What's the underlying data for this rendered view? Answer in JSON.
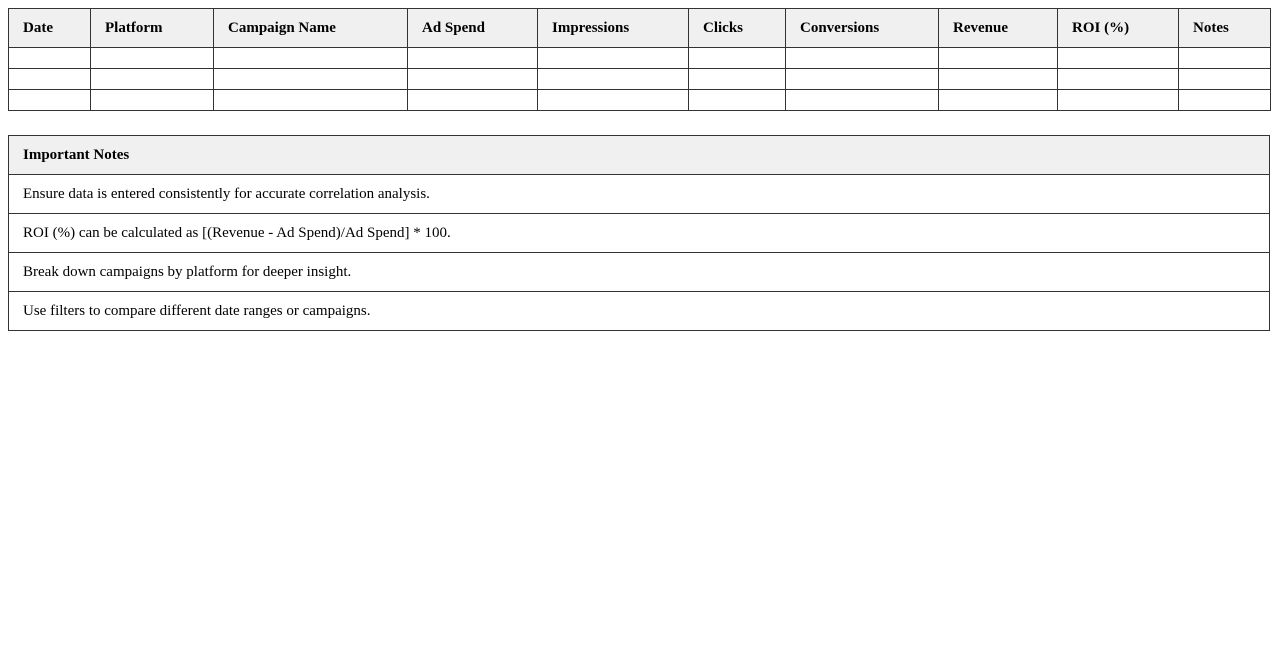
{
  "data_table": {
    "headers": [
      "Date",
      "Platform",
      "Campaign Name",
      "Ad Spend",
      "Impressions",
      "Clicks",
      "Conversions",
      "Revenue",
      "ROI (%)",
      "Notes"
    ],
    "rows": [
      [
        "",
        "",
        "",
        "",
        "",
        "",
        "",
        "",
        "",
        ""
      ],
      [
        "",
        "",
        "",
        "",
        "",
        "",
        "",
        "",
        "",
        ""
      ],
      [
        "",
        "",
        "",
        "",
        "",
        "",
        "",
        "",
        "",
        ""
      ]
    ]
  },
  "notes": {
    "title": "Important Notes",
    "items": [
      "Ensure data is entered consistently for accurate correlation analysis.",
      "ROI (%) can be calculated as [(Revenue - Ad Spend)/Ad Spend] * 100.",
      "Break down campaigns by platform for deeper insight.",
      "Use filters to compare different date ranges or campaigns."
    ]
  },
  "colors": {
    "header_bg": "#f0f0f0",
    "border": "#333333"
  }
}
